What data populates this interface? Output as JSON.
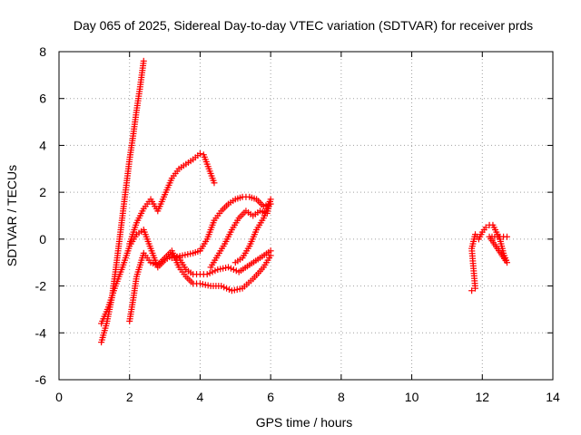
{
  "chart_data": {
    "type": "scatter",
    "title": "Day 065 of 2025, Sidereal Day-to-day VTEC variation (SDTVAR) for receiver prds",
    "xlabel": "GPS time / hours",
    "ylabel": "SDTVAR / TECUs",
    "xlim": [
      0,
      14
    ],
    "ylim": [
      -6,
      8
    ],
    "xticks": [
      0,
      2,
      4,
      6,
      8,
      10,
      12,
      14
    ],
    "yticks": [
      -6,
      -4,
      -2,
      0,
      2,
      4,
      6,
      8
    ],
    "xtick_labels": [
      "0",
      "2",
      "4",
      "6",
      "8",
      "10",
      "12",
      "14"
    ],
    "ytick_labels": [
      "-6",
      "-4",
      "-2",
      "0",
      "2",
      "4",
      "6",
      "8"
    ],
    "grid": true,
    "marker": "+",
    "color": "#ff0000",
    "series": [
      {
        "name": "steep-rise",
        "points": [
          [
            1.2,
            -4.4
          ],
          [
            1.35,
            -3.6
          ],
          [
            1.5,
            -2.5
          ],
          [
            1.6,
            -1.4
          ],
          [
            1.7,
            -0.2
          ],
          [
            1.8,
            1.0
          ],
          [
            1.9,
            2.2
          ],
          [
            2.0,
            3.4
          ],
          [
            2.1,
            4.4
          ],
          [
            2.2,
            5.5
          ],
          [
            2.3,
            6.5
          ],
          [
            2.4,
            7.6
          ]
        ]
      },
      {
        "name": "arc-to-4",
        "points": [
          [
            2.0,
            -0.2
          ],
          [
            2.2,
            0.7
          ],
          [
            2.4,
            1.3
          ],
          [
            2.6,
            1.7
          ],
          [
            2.8,
            1.2
          ],
          [
            3.0,
            1.9
          ],
          [
            3.2,
            2.6
          ],
          [
            3.4,
            3.0
          ],
          [
            3.6,
            3.2
          ],
          [
            3.8,
            3.4
          ],
          [
            4.0,
            3.65
          ],
          [
            4.1,
            3.6
          ],
          [
            4.2,
            3.2
          ],
          [
            4.3,
            2.8
          ],
          [
            4.4,
            2.4
          ]
        ]
      },
      {
        "name": "dip-loop",
        "points": [
          [
            1.2,
            -3.6
          ],
          [
            1.4,
            -2.9
          ],
          [
            1.6,
            -2.0
          ],
          [
            1.8,
            -1.2
          ],
          [
            2.0,
            -0.3
          ],
          [
            2.2,
            0.2
          ],
          [
            2.4,
            0.4
          ],
          [
            2.6,
            -0.4
          ],
          [
            2.8,
            -1.2
          ],
          [
            3.0,
            -0.9
          ],
          [
            3.2,
            -0.7
          ],
          [
            3.4,
            -0.8
          ],
          [
            3.6,
            -1.3
          ],
          [
            3.8,
            -1.5
          ],
          [
            4.0,
            -1.5
          ],
          [
            4.2,
            -1.5
          ],
          [
            4.5,
            -1.3
          ],
          [
            4.8,
            -1.2
          ],
          [
            5.1,
            -1.4
          ],
          [
            5.4,
            -1.1
          ],
          [
            5.7,
            -0.8
          ],
          [
            6.0,
            -0.5
          ]
        ]
      },
      {
        "name": "lower-band",
        "points": [
          [
            2.0,
            -3.5
          ],
          [
            2.1,
            -2.6
          ],
          [
            2.2,
            -1.6
          ],
          [
            2.4,
            -0.6
          ],
          [
            2.6,
            -1.0
          ],
          [
            2.8,
            -1.1
          ],
          [
            3.0,
            -0.8
          ],
          [
            3.2,
            -0.5
          ],
          [
            3.4,
            -1.2
          ],
          [
            3.6,
            -1.6
          ],
          [
            3.8,
            -1.9
          ],
          [
            4.0,
            -1.9
          ],
          [
            4.3,
            -2.0
          ],
          [
            4.6,
            -2.0
          ],
          [
            4.9,
            -2.2
          ],
          [
            5.2,
            -2.1
          ],
          [
            5.5,
            -1.7
          ],
          [
            5.8,
            -1.2
          ],
          [
            6.0,
            -0.7
          ]
        ]
      },
      {
        "name": "upper-band",
        "points": [
          [
            3.2,
            -0.8
          ],
          [
            3.5,
            -0.7
          ],
          [
            3.8,
            -0.6
          ],
          [
            4.0,
            -0.5
          ],
          [
            4.2,
            0.0
          ],
          [
            4.4,
            0.8
          ],
          [
            4.6,
            1.2
          ],
          [
            4.8,
            1.5
          ],
          [
            5.0,
            1.7
          ],
          [
            5.2,
            1.8
          ],
          [
            5.4,
            1.8
          ],
          [
            5.6,
            1.7
          ],
          [
            5.8,
            1.4
          ],
          [
            6.0,
            1.5
          ]
        ]
      },
      {
        "name": "return-loop",
        "points": [
          [
            4.3,
            -1.2
          ],
          [
            4.5,
            -0.7
          ],
          [
            4.7,
            -0.2
          ],
          [
            4.9,
            0.4
          ],
          [
            5.1,
            0.9
          ],
          [
            5.3,
            1.2
          ],
          [
            5.5,
            1.0
          ],
          [
            5.7,
            1.2
          ],
          [
            5.9,
            1.1
          ],
          [
            6.0,
            1.7
          ],
          [
            5.8,
            0.9
          ],
          [
            5.6,
            0.4
          ],
          [
            5.4,
            -0.3
          ],
          [
            5.2,
            -0.8
          ],
          [
            5.0,
            -1.0
          ]
        ]
      },
      {
        "name": "cluster-12",
        "points": [
          [
            11.7,
            -2.2
          ],
          [
            11.8,
            -2.1
          ],
          [
            11.7,
            -0.4
          ],
          [
            11.8,
            0.2
          ],
          [
            11.9,
            0.0
          ],
          [
            12.0,
            0.3
          ],
          [
            12.1,
            0.5
          ],
          [
            12.2,
            0.6
          ],
          [
            12.3,
            0.6
          ],
          [
            12.4,
            0.3
          ],
          [
            12.5,
            0.0
          ],
          [
            12.6,
            -0.6
          ],
          [
            12.7,
            -1.0
          ],
          [
            12.2,
            0.1
          ],
          [
            12.5,
            0.1
          ],
          [
            12.7,
            0.1
          ]
        ]
      }
    ]
  }
}
